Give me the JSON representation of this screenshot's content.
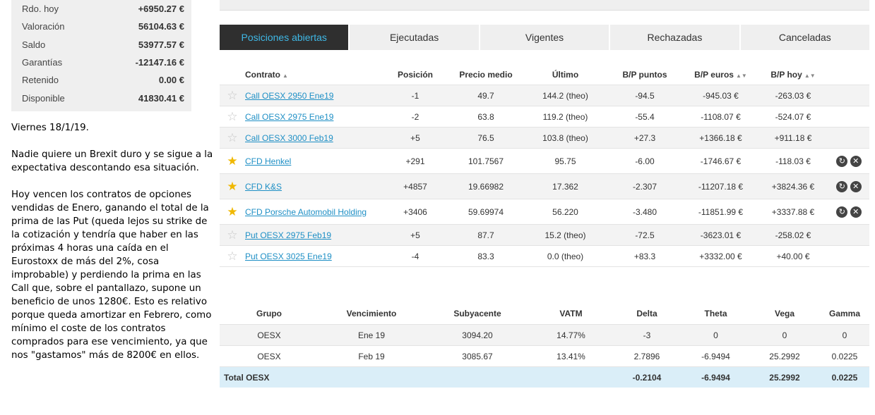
{
  "account": {
    "rows": [
      {
        "label": "Rdo. hoy",
        "value": "+6950.27 €"
      },
      {
        "label": "Valoración",
        "value": "56104.63 €"
      },
      {
        "label": "Saldo",
        "value": "53977.57 €"
      },
      {
        "label": "Garantías",
        "value": "-12147.16 €"
      },
      {
        "label": "Retenido",
        "value": "0.00 €"
      },
      {
        "label": "Disponible",
        "value": "41830.41 €"
      }
    ]
  },
  "note": {
    "date": "Viernes 18/1/19.",
    "p1": "Nadie quiere un Brexit duro y se sigue a la expectativa descontando esa situación.",
    "p2": "Hoy vencen los contratos de opciones vendidas de Enero, ganando el total de la prima de las Put (queda lejos su strike de la cotización y tendría que haber en las próximas 4 horas una caída en el Eurostoxx de más del 2%, cosa improbable) y perdiendo la prima en las Call que, sobre el pantallazo, supone un beneficio de unos 1280€. Esto es relativo porque queda amortizar en Febrero, como mínimo el coste de los contratos comprados para ese vencimiento, ya que nos \"gastamos\" más de 8200€ en ellos."
  },
  "tabs": [
    "Posiciones abiertas",
    "Ejecutadas",
    "Vigentes",
    "Rechazadas",
    "Canceladas"
  ],
  "positions": {
    "headers": {
      "contrato": "Contrato",
      "posicion": "Posición",
      "precio": "Precio medio",
      "ultimo": "Último",
      "bp_puntos": "B/P puntos",
      "bp_euros": "B/P euros",
      "bp_hoy": "B/P hoy"
    },
    "rows": [
      {
        "contract": "Call OESX 2950 Ene19",
        "position": "-1",
        "avg": "49.7",
        "last": "144.2 (theo)",
        "pts": "-94.5",
        "eur": "-945.03 €",
        "today": "-263.03 €"
      },
      {
        "contract": "Call OESX 2975 Ene19",
        "position": "-2",
        "avg": "63.8",
        "last": "119.2 (theo)",
        "pts": "-55.4",
        "eur": "-1108.07 €",
        "today": "-524.07 €"
      },
      {
        "contract": "Call OESX 3000 Feb19",
        "position": "+5",
        "avg": "76.5",
        "last": "103.8 (theo)",
        "pts": "+27.3",
        "eur": "+1366.18 €",
        "today": "+911.18 €"
      },
      {
        "contract": "CFD Henkel",
        "position": "+291",
        "avg": "101.7567",
        "last": "95.75",
        "pts": "-6.00",
        "eur": "-1746.67 €",
        "today": "-118.03 €"
      },
      {
        "contract": "CFD K&S",
        "position": "+4857",
        "avg": "19.66982",
        "last": "17.362",
        "pts": "-2.307",
        "eur": "-11207.18 €",
        "today": "+3824.36 €"
      },
      {
        "contract": "CFD Porsche Automobil Holding",
        "position": "+3406",
        "avg": "59.69974",
        "last": "56.220",
        "pts": "-3.480",
        "eur": "-11851.99 €",
        "today": "+3337.88 €"
      },
      {
        "contract": "Put OESX 2975 Feb19",
        "position": "+5",
        "avg": "87.7",
        "last": "15.2 (theo)",
        "pts": "-72.5",
        "eur": "-3623.01 €",
        "today": "-258.02 €"
      },
      {
        "contract": "Put OESX 3025 Ene19",
        "position": "-4",
        "avg": "83.3",
        "last": "0.0 (theo)",
        "pts": "+83.3",
        "eur": "+3332.00 €",
        "today": "+40.00 €"
      }
    ]
  },
  "greeks": {
    "headers": [
      "Grupo",
      "Vencimiento",
      "Subyacente",
      "VATM",
      "Delta",
      "Theta",
      "Vega",
      "Gamma"
    ],
    "rows": [
      [
        "OESX",
        "Ene 19",
        "3094.20",
        "14.77%",
        "-3",
        "0",
        "0",
        "0"
      ],
      [
        "OESX",
        "Feb 19",
        "3085.67",
        "13.41%",
        "2.7896",
        "-6.9494",
        "25.2992",
        "0.0225"
      ]
    ],
    "total": {
      "label": "Total OESX",
      "delta": "-0.2104",
      "theta": "-6.9494",
      "vega": "25.2992",
      "gamma": "0.0225"
    }
  },
  "colors": {
    "negative": "#e03030",
    "positive": "#1a9a46",
    "link": "#1e8fc5",
    "active_tab_bg": "#2f2f2f",
    "active_tab_text": "#3fb8e6",
    "star_on": "#f0b800"
  }
}
